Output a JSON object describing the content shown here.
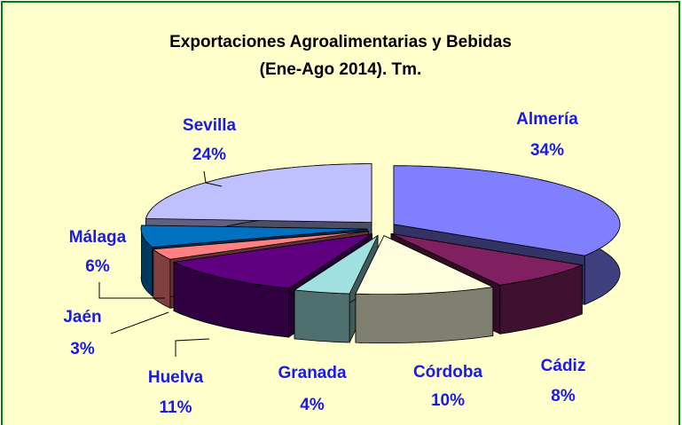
{
  "chart_data": {
    "type": "pie",
    "title": [
      "Exportaciones Agroalimentarias y Bebidas",
      "(Ene-Ago 2014). Tm."
    ],
    "categories": [
      "Almería",
      "Cádiz",
      "Córdoba",
      "Granada",
      "Huelva",
      "Jaén",
      "Málaga",
      "Sevilla"
    ],
    "values": [
      34,
      8,
      10,
      4,
      11,
      3,
      6,
      24
    ],
    "value_labels": [
      "34%",
      "8%",
      "10%",
      "4%",
      "11%",
      "3%",
      "6%",
      "24%"
    ],
    "colors": [
      "#8080ff",
      "#802060",
      "#ffffe0",
      "#a0e0e0",
      "#600080",
      "#ff8080",
      "#0070c0",
      "#c0c0ff"
    ]
  }
}
